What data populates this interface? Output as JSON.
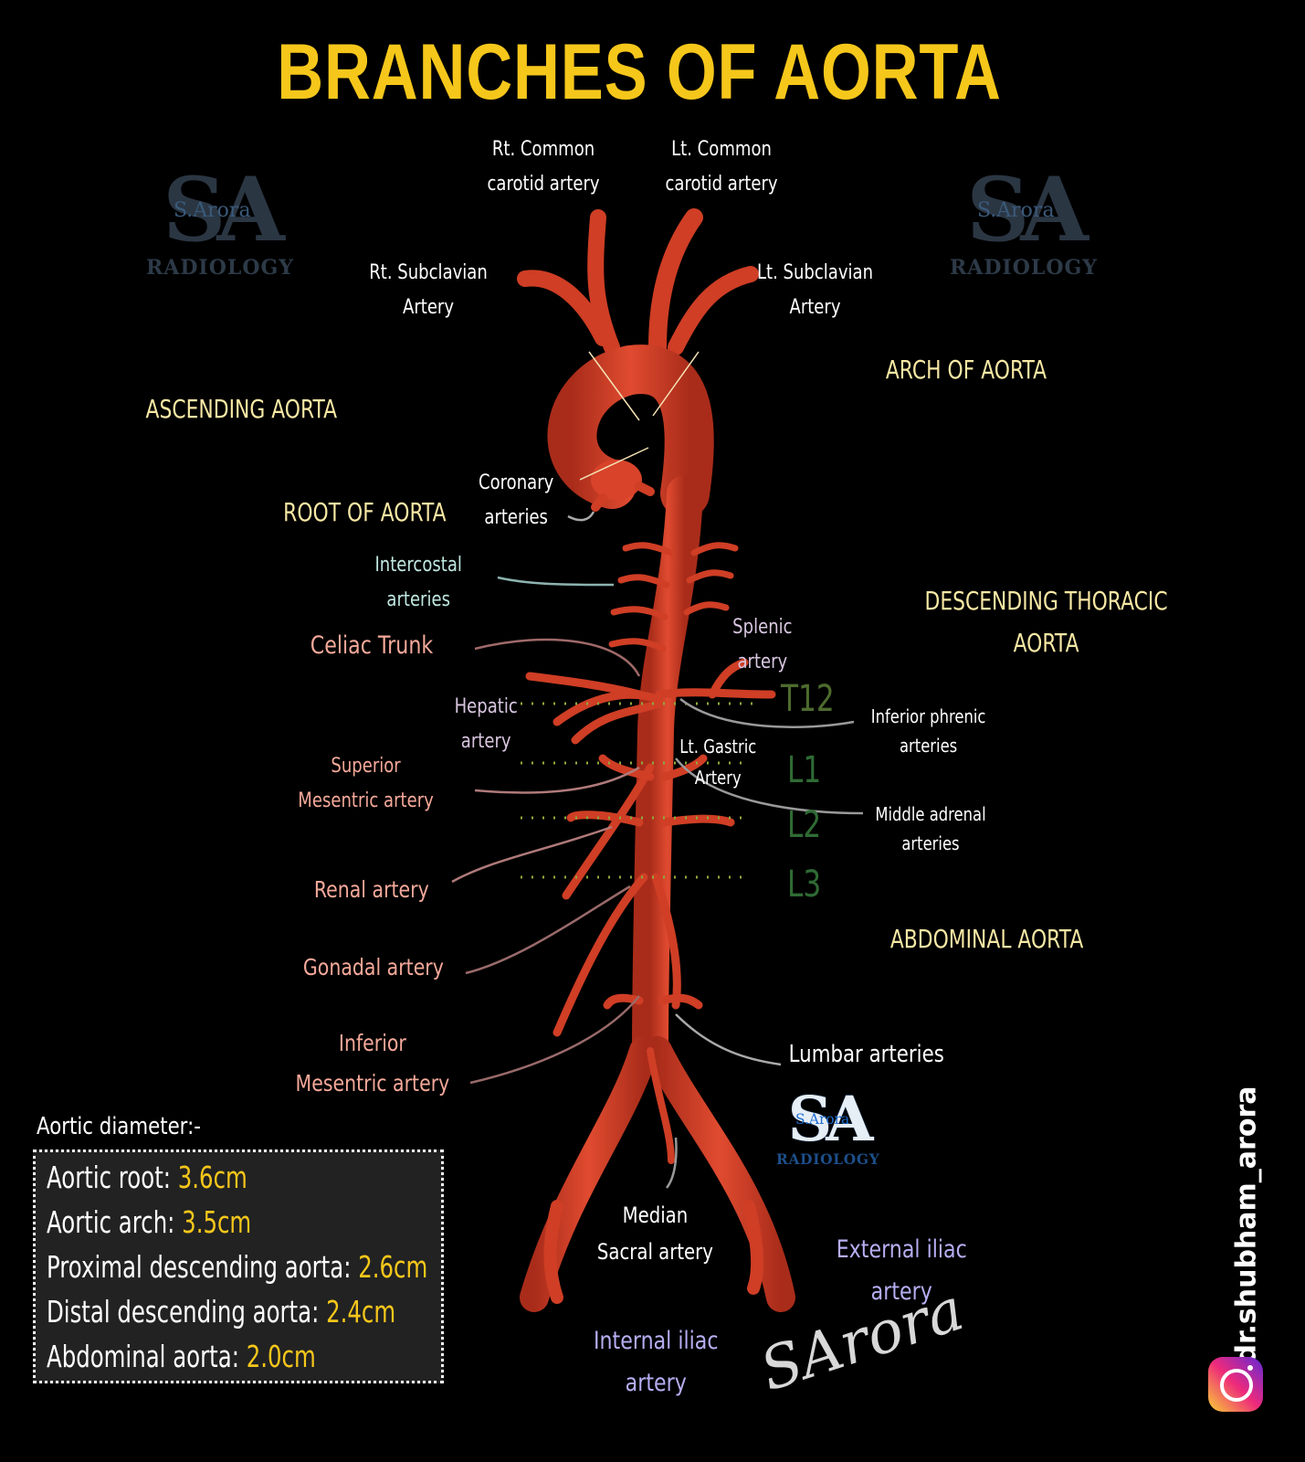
{
  "title": "BRANCHES OF AORTA",
  "colors": {
    "title": "#f6c71b",
    "section": "#f7e8a4",
    "branch_label": "#f5a99a",
    "white_label": "#ffffff",
    "intercostal": "#bfe7e0",
    "splenic": "#d9c6e0",
    "iliac": "#b6aef2",
    "vertebral_level": "#3b6b3a",
    "aorta": "#d8432a",
    "aorta_dark": "#a92c1a",
    "value": "#f6c71b"
  },
  "labels": {
    "rt_common_carotid": [
      "Rt. Common",
      "carotid artery"
    ],
    "lt_common_carotid": [
      "Lt. Common",
      "carotid artery"
    ],
    "rt_subclavian": [
      "Rt. Subclavian",
      "Artery"
    ],
    "lt_subclavian": [
      "Lt. Subclavian",
      "Artery"
    ],
    "coronary": [
      "Coronary",
      "arteries"
    ],
    "intercostal": [
      "Intercostal",
      "arteries"
    ],
    "celiac": "Celiac Trunk",
    "splenic": [
      "Splenic",
      "artery"
    ],
    "hepatic": [
      "Hepatic",
      "artery"
    ],
    "lt_gastric": [
      "Lt. Gastric",
      "Artery"
    ],
    "inferior_phrenic": [
      "Inferior phrenic",
      "arteries"
    ],
    "middle_adrenal": [
      "Middle adrenal",
      "arteries"
    ],
    "superior_mesenteric": [
      "Superior",
      "Mesentric artery"
    ],
    "renal": "Renal artery",
    "gonadal": "Gonadal artery",
    "inferior_mesenteric": [
      "Inferior",
      "Mesentric artery"
    ],
    "lumbar": "Lumbar arteries",
    "median_sacral": [
      "Median",
      "Sacral artery"
    ],
    "external_iliac": [
      "External iliac",
      "artery"
    ],
    "internal_iliac": [
      "Internal iliac",
      "artery"
    ]
  },
  "sections": {
    "ascending": "ASCENDING AORTA",
    "root": "ROOT OF AORTA",
    "arch": "ARCH OF AORTA",
    "descending_thoracic": [
      "DESCENDING THORACIC",
      "AORTA"
    ],
    "abdominal": "ABDOMINAL AORTA"
  },
  "levels": [
    "T12",
    "L1",
    "L2",
    "L3"
  ],
  "diameter": {
    "heading": "Aortic diameter:-",
    "rows": [
      {
        "label": "Aortic root: ",
        "value": "3.6cm"
      },
      {
        "label": "Aortic arch: ",
        "value": "3.5cm"
      },
      {
        "label": "Proximal descending aorta: ",
        "value": "2.6cm"
      },
      {
        "label": "Distal descending aorta: ",
        "value": "2.4cm"
      },
      {
        "label": "Abdominal aorta: ",
        "value": "2.0cm"
      }
    ]
  },
  "logo": {
    "letters": "SA",
    "small": "S.Arora",
    "word": "RADIOLOGY"
  },
  "handle": "dr.shubham_arora",
  "icons": {
    "social": "instagram-icon"
  },
  "signature": "SArora"
}
